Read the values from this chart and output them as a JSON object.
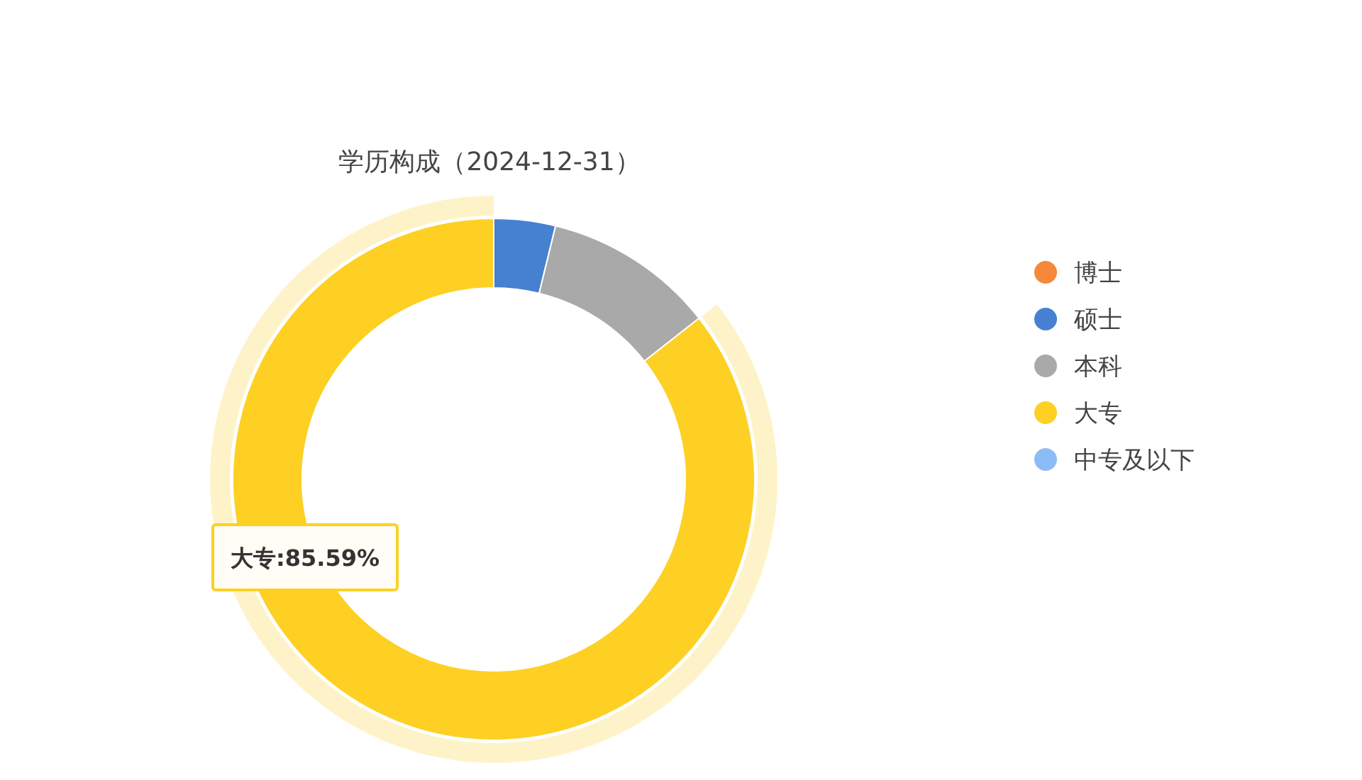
{
  "chart_data": {
    "type": "donut",
    "title": "学历构成（2024-12-31）",
    "categories": [
      "博士",
      "硕士",
      "本科",
      "大专",
      "中专及以下"
    ],
    "values": [
      0,
      3.81,
      10.6,
      85.59,
      0
    ],
    "colors": [
      "#f5883b",
      "#4680d0",
      "#a9a9a9",
      "#fdd023",
      "#8cbcf7"
    ],
    "value_labels": [
      null,
      null,
      null,
      "大专:85.59%",
      null
    ],
    "legend": "right"
  }
}
